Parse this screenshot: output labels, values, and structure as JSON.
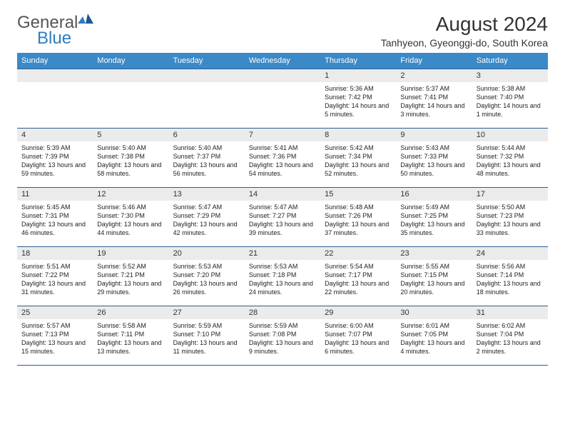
{
  "brand": {
    "text1": "General",
    "text2": "Blue"
  },
  "title": "August 2024",
  "location": "Tanhyeon, Gyeonggi-do, South Korea",
  "colors": {
    "header_bg": "#3b89c7",
    "border": "#2d5f8f",
    "daynum_bg": "#ebebeb",
    "logo_gray": "#555555",
    "logo_blue": "#2d7dc0"
  },
  "weekdays": [
    "Sunday",
    "Monday",
    "Tuesday",
    "Wednesday",
    "Thursday",
    "Friday",
    "Saturday"
  ],
  "weeks": [
    [
      {
        "n": "",
        "sr": "",
        "ss": "",
        "dl": ""
      },
      {
        "n": "",
        "sr": "",
        "ss": "",
        "dl": ""
      },
      {
        "n": "",
        "sr": "",
        "ss": "",
        "dl": ""
      },
      {
        "n": "",
        "sr": "",
        "ss": "",
        "dl": ""
      },
      {
        "n": "1",
        "sr": "Sunrise: 5:36 AM",
        "ss": "Sunset: 7:42 PM",
        "dl": "Daylight: 14 hours and 5 minutes."
      },
      {
        "n": "2",
        "sr": "Sunrise: 5:37 AM",
        "ss": "Sunset: 7:41 PM",
        "dl": "Daylight: 14 hours and 3 minutes."
      },
      {
        "n": "3",
        "sr": "Sunrise: 5:38 AM",
        "ss": "Sunset: 7:40 PM",
        "dl": "Daylight: 14 hours and 1 minute."
      }
    ],
    [
      {
        "n": "4",
        "sr": "Sunrise: 5:39 AM",
        "ss": "Sunset: 7:39 PM",
        "dl": "Daylight: 13 hours and 59 minutes."
      },
      {
        "n": "5",
        "sr": "Sunrise: 5:40 AM",
        "ss": "Sunset: 7:38 PM",
        "dl": "Daylight: 13 hours and 58 minutes."
      },
      {
        "n": "6",
        "sr": "Sunrise: 5:40 AM",
        "ss": "Sunset: 7:37 PM",
        "dl": "Daylight: 13 hours and 56 minutes."
      },
      {
        "n": "7",
        "sr": "Sunrise: 5:41 AM",
        "ss": "Sunset: 7:36 PM",
        "dl": "Daylight: 13 hours and 54 minutes."
      },
      {
        "n": "8",
        "sr": "Sunrise: 5:42 AM",
        "ss": "Sunset: 7:34 PM",
        "dl": "Daylight: 13 hours and 52 minutes."
      },
      {
        "n": "9",
        "sr": "Sunrise: 5:43 AM",
        "ss": "Sunset: 7:33 PM",
        "dl": "Daylight: 13 hours and 50 minutes."
      },
      {
        "n": "10",
        "sr": "Sunrise: 5:44 AM",
        "ss": "Sunset: 7:32 PM",
        "dl": "Daylight: 13 hours and 48 minutes."
      }
    ],
    [
      {
        "n": "11",
        "sr": "Sunrise: 5:45 AM",
        "ss": "Sunset: 7:31 PM",
        "dl": "Daylight: 13 hours and 46 minutes."
      },
      {
        "n": "12",
        "sr": "Sunrise: 5:46 AM",
        "ss": "Sunset: 7:30 PM",
        "dl": "Daylight: 13 hours and 44 minutes."
      },
      {
        "n": "13",
        "sr": "Sunrise: 5:47 AM",
        "ss": "Sunset: 7:29 PM",
        "dl": "Daylight: 13 hours and 42 minutes."
      },
      {
        "n": "14",
        "sr": "Sunrise: 5:47 AM",
        "ss": "Sunset: 7:27 PM",
        "dl": "Daylight: 13 hours and 39 minutes."
      },
      {
        "n": "15",
        "sr": "Sunrise: 5:48 AM",
        "ss": "Sunset: 7:26 PM",
        "dl": "Daylight: 13 hours and 37 minutes."
      },
      {
        "n": "16",
        "sr": "Sunrise: 5:49 AM",
        "ss": "Sunset: 7:25 PM",
        "dl": "Daylight: 13 hours and 35 minutes."
      },
      {
        "n": "17",
        "sr": "Sunrise: 5:50 AM",
        "ss": "Sunset: 7:23 PM",
        "dl": "Daylight: 13 hours and 33 minutes."
      }
    ],
    [
      {
        "n": "18",
        "sr": "Sunrise: 5:51 AM",
        "ss": "Sunset: 7:22 PM",
        "dl": "Daylight: 13 hours and 31 minutes."
      },
      {
        "n": "19",
        "sr": "Sunrise: 5:52 AM",
        "ss": "Sunset: 7:21 PM",
        "dl": "Daylight: 13 hours and 29 minutes."
      },
      {
        "n": "20",
        "sr": "Sunrise: 5:53 AM",
        "ss": "Sunset: 7:20 PM",
        "dl": "Daylight: 13 hours and 26 minutes."
      },
      {
        "n": "21",
        "sr": "Sunrise: 5:53 AM",
        "ss": "Sunset: 7:18 PM",
        "dl": "Daylight: 13 hours and 24 minutes."
      },
      {
        "n": "22",
        "sr": "Sunrise: 5:54 AM",
        "ss": "Sunset: 7:17 PM",
        "dl": "Daylight: 13 hours and 22 minutes."
      },
      {
        "n": "23",
        "sr": "Sunrise: 5:55 AM",
        "ss": "Sunset: 7:15 PM",
        "dl": "Daylight: 13 hours and 20 minutes."
      },
      {
        "n": "24",
        "sr": "Sunrise: 5:56 AM",
        "ss": "Sunset: 7:14 PM",
        "dl": "Daylight: 13 hours and 18 minutes."
      }
    ],
    [
      {
        "n": "25",
        "sr": "Sunrise: 5:57 AM",
        "ss": "Sunset: 7:13 PM",
        "dl": "Daylight: 13 hours and 15 minutes."
      },
      {
        "n": "26",
        "sr": "Sunrise: 5:58 AM",
        "ss": "Sunset: 7:11 PM",
        "dl": "Daylight: 13 hours and 13 minutes."
      },
      {
        "n": "27",
        "sr": "Sunrise: 5:59 AM",
        "ss": "Sunset: 7:10 PM",
        "dl": "Daylight: 13 hours and 11 minutes."
      },
      {
        "n": "28",
        "sr": "Sunrise: 5:59 AM",
        "ss": "Sunset: 7:08 PM",
        "dl": "Daylight: 13 hours and 9 minutes."
      },
      {
        "n": "29",
        "sr": "Sunrise: 6:00 AM",
        "ss": "Sunset: 7:07 PM",
        "dl": "Daylight: 13 hours and 6 minutes."
      },
      {
        "n": "30",
        "sr": "Sunrise: 6:01 AM",
        "ss": "Sunset: 7:05 PM",
        "dl": "Daylight: 13 hours and 4 minutes."
      },
      {
        "n": "31",
        "sr": "Sunrise: 6:02 AM",
        "ss": "Sunset: 7:04 PM",
        "dl": "Daylight: 13 hours and 2 minutes."
      }
    ]
  ]
}
